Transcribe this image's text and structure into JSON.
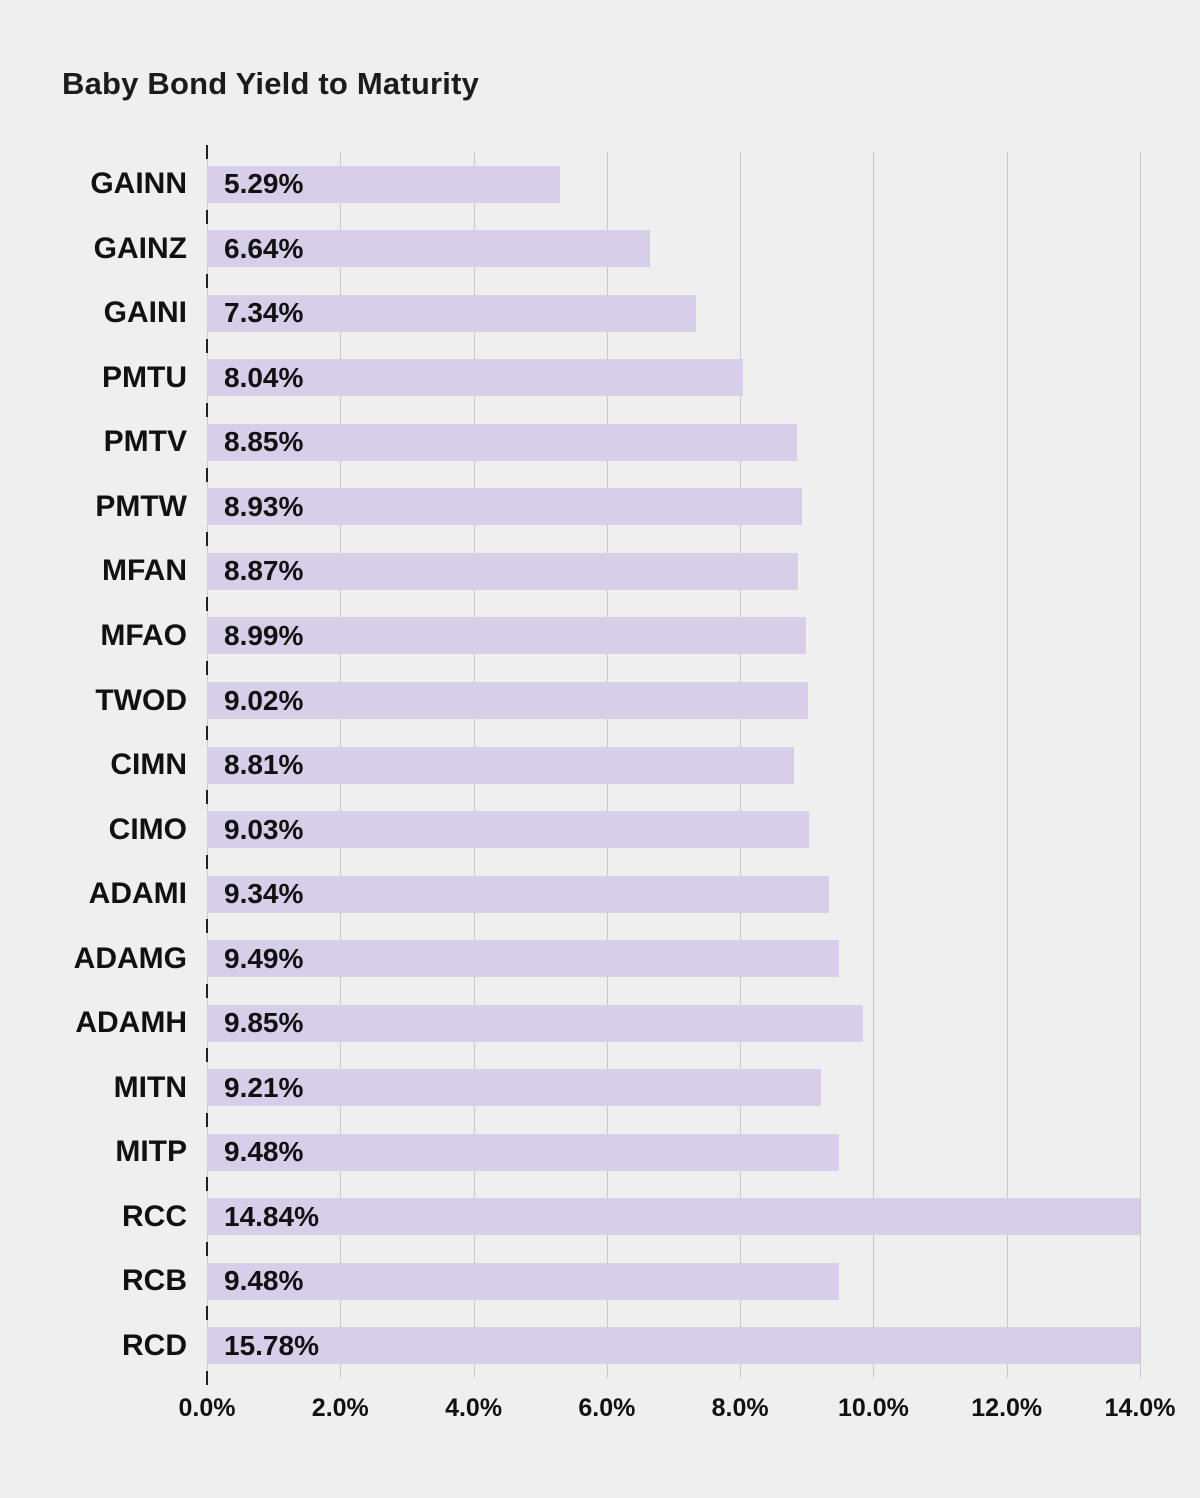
{
  "title": "Baby Bond Yield to Maturity",
  "chart_data": {
    "type": "bar",
    "orientation": "horizontal",
    "title": "Baby Bond Yield to Maturity",
    "xlabel": "",
    "ylabel": "",
    "categories": [
      "GAINN",
      "GAINZ",
      "GAINI",
      "PMTU",
      "PMTV",
      "PMTW",
      "MFAN",
      "MFAO",
      "TWOD",
      "CIMN",
      "CIMO",
      "ADAMI",
      "ADAMG",
      "ADAMH",
      "MITN",
      "MITP",
      "RCC",
      "RCB",
      "RCD"
    ],
    "values": [
      5.29,
      6.64,
      7.34,
      8.04,
      8.85,
      8.93,
      8.87,
      8.99,
      9.02,
      8.81,
      9.03,
      9.34,
      9.49,
      9.85,
      9.21,
      9.48,
      14.84,
      9.48,
      15.78
    ],
    "value_labels": [
      "5.29%",
      "6.64%",
      "7.34%",
      "8.04%",
      "8.85%",
      "8.93%",
      "8.87%",
      "8.99%",
      "9.02%",
      "8.81%",
      "9.03%",
      "9.34%",
      "9.49%",
      "9.85%",
      "9.21%",
      "9.48%",
      "14.84%",
      "9.48%",
      "15.78%"
    ],
    "xlim": [
      0,
      14
    ],
    "x_tick_values": [
      0,
      2,
      4,
      6,
      8,
      10,
      12,
      14
    ],
    "x_tick_labels": [
      "0.0%",
      "2.0%",
      "4.0%",
      "6.0%",
      "8.0%",
      "10.0%",
      "12.0%",
      "14.0%"
    ],
    "grid": true,
    "legend": "none",
    "colors": {
      "bar": "#d7cfe9",
      "background": "#efefef",
      "gridline": "#c9c9c9",
      "text": "#111111"
    }
  }
}
